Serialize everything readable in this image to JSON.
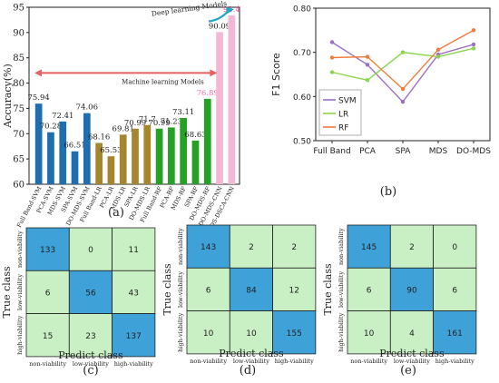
{
  "chart_data": [
    {
      "panel": "(a)",
      "type": "bar",
      "ylabel": "Accuracy(%)",
      "ylim": [
        60,
        95
      ],
      "yticks": [
        60,
        65,
        70,
        75,
        80,
        85,
        90,
        95
      ],
      "categories": [
        "Full Band-SVM",
        "PCA-SVM",
        "MDS-SVM",
        "SPA-SVM",
        "DO-MDS-SVM",
        "Full Band-LR",
        "PCA-LR",
        "MDS-LR",
        "SPA-LR",
        "DO-MDS-LR",
        "Full Band-RF",
        "PCA-RF",
        "MDS-RF",
        "SPA-RF",
        "DO-MDS-RF",
        "DO-MDS-CNN",
        "DO-MDS-DSCA-CNN"
      ],
      "values": [
        75.94,
        70.28,
        72.41,
        66.51,
        74.06,
        68.16,
        65.53,
        69.81,
        70.99,
        71.7,
        70.99,
        71.23,
        73.11,
        68.63,
        76.89,
        90.09,
        93.4
      ],
      "value_labels": [
        "75.94",
        "70.28",
        "72.41",
        "66.51",
        "74.06",
        "68.16",
        "65.53",
        "69.81",
        "70.99",
        "71.7",
        "70.99",
        "71.23",
        "73.11",
        "68.63",
        "76.89",
        "90.09",
        "93.4"
      ],
      "colors": [
        "#1f6eb0",
        "#1f6eb0",
        "#1f6eb0",
        "#1f6eb0",
        "#1f6eb0",
        "#a6852f",
        "#a6852f",
        "#a6852f",
        "#a6852f",
        "#a6852f",
        "#25a125",
        "#25a125",
        "#25a125",
        "#25a125",
        "#25a125",
        "#f4b8d4",
        "#f4b8d4"
      ],
      "label_colors": [
        "#222222",
        "#222222",
        "#222222",
        "#222222",
        "#222222",
        "#222222",
        "#222222",
        "#222222",
        "#222222",
        "#222222",
        "#222222",
        "#222222",
        "#222222",
        "#222222",
        "#ff6fb0",
        "#222222",
        "#ff4090"
      ],
      "annotations": {
        "ml": "Machine learning Models",
        "dl": "Deep learning Models"
      }
    },
    {
      "panel": "(b)",
      "type": "line",
      "ylabel": "F1 Score",
      "ylim": [
        0.5,
        0.8
      ],
      "yticks": [
        0.5,
        0.6,
        0.7,
        0.8
      ],
      "ytick_labels": [
        "0.50",
        "0.60",
        "0.70",
        "0.80"
      ],
      "categories": [
        "Full Band",
        "PCA",
        "SPA",
        "MDS",
        "DO-MDS"
      ],
      "series": [
        {
          "name": "SVM",
          "color": "#9a6fc4",
          "values": [
            0.723,
            0.672,
            0.588,
            0.695,
            0.718
          ]
        },
        {
          "name": "LR",
          "color": "#8cd64b",
          "values": [
            0.655,
            0.637,
            0.7,
            0.69,
            0.709
          ]
        },
        {
          "name": "RF",
          "color": "#f07b3c",
          "values": [
            0.688,
            0.69,
            0.617,
            0.706,
            0.75
          ]
        }
      ],
      "legend": "bottom-left"
    },
    {
      "panel": "(c)",
      "type": "heatmap",
      "xlabel": "Predict class",
      "ylabel": "True class",
      "labels": [
        "non-viability",
        "low-viability",
        "high-viability"
      ],
      "matrix": [
        [
          133,
          0,
          11
        ],
        [
          6,
          56,
          43
        ],
        [
          15,
          23,
          137
        ]
      ]
    },
    {
      "panel": "(d)",
      "type": "heatmap",
      "xlabel": "Predict class",
      "ylabel": "True class",
      "labels": [
        "non-viability",
        "low-viability",
        "high-viability"
      ],
      "matrix": [
        [
          143,
          2,
          2
        ],
        [
          6,
          84,
          12
        ],
        [
          10,
          10,
          155
        ]
      ]
    },
    {
      "panel": "(e)",
      "type": "heatmap",
      "xlabel": "Predict class",
      "ylabel": "True class",
      "labels": [
        "non-viability",
        "low-viability",
        "high-viability"
      ],
      "matrix": [
        [
          145,
          2,
          0
        ],
        [
          6,
          90,
          6
        ],
        [
          10,
          4,
          161
        ]
      ]
    }
  ],
  "colors": {
    "diag": "#3ea1d8",
    "offdiag": "#c8f0c4",
    "arrow_red": "#e86060",
    "arrow_blue": "#1fa6c8"
  }
}
